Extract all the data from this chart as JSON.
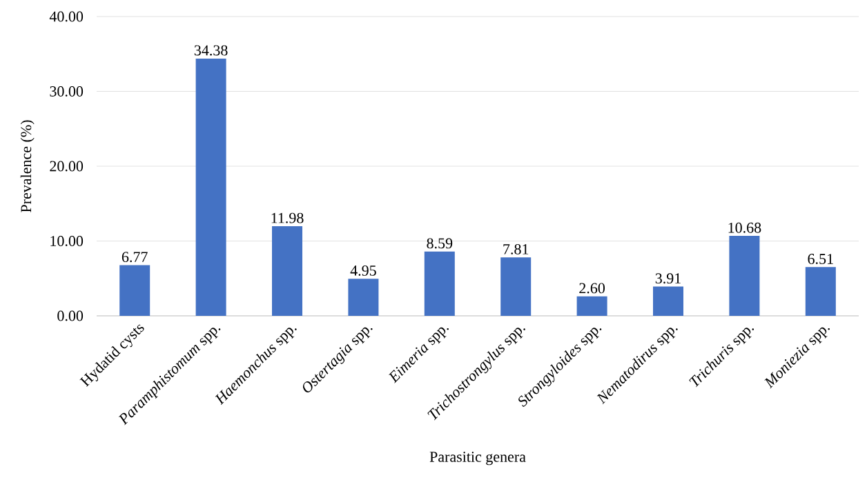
{
  "chart_data": {
    "type": "bar",
    "xlabel": "Parasitic genera",
    "ylabel": "Prevalence (%)",
    "categories": [
      "Hydatid cysts",
      "*Paramphistomum* spp.",
      "*Haemonchus* spp.",
      "*Ostertagia* spp.",
      "*Eimeria* spp.",
      "*Trichostrongylus* spp.",
      "*Strongyloides* spp.",
      "*Nematodirus* spp.",
      "*Trichuris* spp.",
      "*Moniezia* spp."
    ],
    "values": [
      6.77,
      34.38,
      11.98,
      4.95,
      8.59,
      7.81,
      2.6,
      3.91,
      10.68,
      6.51
    ],
    "value_labels": [
      "6.77",
      "34.38",
      "11.98",
      "4.95",
      "8.59",
      "7.81",
      "2.60",
      "3.91",
      "10.68",
      "6.51"
    ],
    "color": "#4472c4",
    "ylim": [
      0,
      40
    ],
    "yticks": [
      {
        "value": 0,
        "label": "0.00"
      },
      {
        "value": 10,
        "label": "10.00"
      },
      {
        "value": 20,
        "label": "20.00"
      },
      {
        "value": 30,
        "label": "30.00"
      },
      {
        "value": 40,
        "label": "40.00"
      }
    ],
    "grid": "y"
  }
}
